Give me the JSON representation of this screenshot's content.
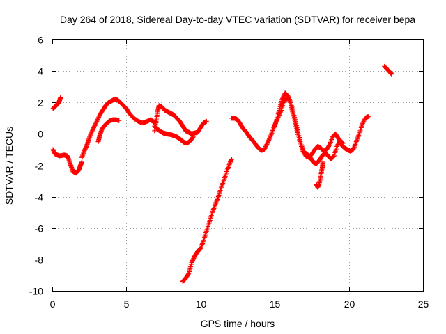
{
  "chart_data": {
    "type": "scatter",
    "title": "Day 264 of 2018, Sidereal Day-to-day VTEC variation (SDTVAR) for receiver bepa",
    "xlabel": "GPS time / hours",
    "ylabel": "SDTVAR / TECUs",
    "xlim": [
      0,
      25
    ],
    "ylim": [
      -10,
      6
    ],
    "xticks": [
      "0",
      "5",
      "10",
      "15",
      "20",
      "25"
    ],
    "yticks": [
      "-10",
      "-8",
      "-6",
      "-4",
      "-2",
      "0",
      "2",
      "4",
      "6"
    ],
    "grid": true,
    "marker": "plus",
    "color": "#ff0000",
    "series": [
      {
        "points": [
          [
            0.05,
            1.6
          ],
          [
            0.15,
            1.7
          ],
          [
            0.25,
            1.8
          ],
          [
            0.35,
            1.9
          ],
          [
            0.45,
            2.0
          ],
          [
            0.55,
            2.3
          ]
        ]
      },
      {
        "points": [
          [
            0.05,
            -1.0
          ],
          [
            0.2,
            -1.3
          ],
          [
            0.5,
            -1.4
          ],
          [
            0.8,
            -1.35
          ],
          [
            1.0,
            -1.4
          ],
          [
            1.1,
            -1.6
          ],
          [
            1.25,
            -2.0
          ],
          [
            1.4,
            -2.4
          ],
          [
            1.6,
            -2.5
          ],
          [
            1.8,
            -2.3
          ],
          [
            1.9,
            -2.0
          ],
          [
            2.0,
            -1.8
          ]
        ]
      },
      {
        "points": [
          [
            2.0,
            -1.5
          ],
          [
            2.15,
            -1.1
          ],
          [
            2.3,
            -0.8
          ],
          [
            2.45,
            -0.4
          ],
          [
            2.6,
            0.0
          ],
          [
            2.8,
            0.4
          ],
          [
            3.0,
            0.8
          ],
          [
            3.2,
            1.2
          ],
          [
            3.4,
            1.5
          ],
          [
            3.6,
            1.8
          ],
          [
            3.8,
            2.0
          ],
          [
            4.0,
            2.1
          ],
          [
            4.2,
            2.2
          ],
          [
            4.4,
            2.15
          ],
          [
            4.6,
            2.0
          ],
          [
            4.8,
            1.8
          ],
          [
            5.0,
            1.6
          ],
          [
            5.2,
            1.3
          ],
          [
            5.5,
            1.0
          ],
          [
            5.8,
            0.8
          ],
          [
            6.1,
            0.7
          ],
          [
            6.4,
            0.8
          ],
          [
            6.6,
            0.9
          ],
          [
            6.8,
            0.8
          ],
          [
            7.0,
            0.7
          ]
        ]
      },
      {
        "points": [
          [
            3.1,
            -0.5
          ],
          [
            3.2,
            -0.1
          ],
          [
            3.35,
            0.3
          ],
          [
            3.5,
            0.5
          ],
          [
            3.7,
            0.7
          ],
          [
            3.9,
            0.85
          ],
          [
            4.1,
            0.9
          ],
          [
            4.3,
            0.9
          ],
          [
            4.5,
            0.85
          ]
        ]
      },
      {
        "points": [
          [
            6.9,
            0.2
          ],
          [
            7.0,
            0.8
          ],
          [
            7.1,
            1.4
          ],
          [
            7.2,
            1.8
          ],
          [
            7.4,
            1.7
          ],
          [
            7.6,
            1.5
          ],
          [
            7.8,
            1.4
          ],
          [
            8.0,
            1.3
          ],
          [
            8.2,
            1.2
          ],
          [
            8.4,
            1.0
          ],
          [
            8.6,
            0.8
          ],
          [
            8.8,
            0.5
          ],
          [
            9.0,
            0.2
          ],
          [
            9.2,
            0.1
          ],
          [
            9.4,
            0.0
          ],
          [
            9.6,
            0.05
          ],
          [
            9.8,
            0.1
          ],
          [
            10.0,
            0.4
          ],
          [
            10.2,
            0.7
          ],
          [
            10.4,
            0.8
          ]
        ]
      },
      {
        "points": [
          [
            6.9,
            0.5
          ],
          [
            7.1,
            0.3
          ],
          [
            7.3,
            0.15
          ],
          [
            7.5,
            0.05
          ],
          [
            7.7,
            0.0
          ],
          [
            8.0,
            -0.05
          ],
          [
            8.3,
            -0.15
          ],
          [
            8.5,
            -0.25
          ],
          [
            8.7,
            -0.4
          ],
          [
            8.9,
            -0.55
          ],
          [
            9.1,
            -0.6
          ],
          [
            9.3,
            -0.45
          ],
          [
            9.5,
            -0.2
          ]
        ]
      },
      {
        "points": [
          [
            8.8,
            -9.4
          ],
          [
            9.0,
            -9.2
          ],
          [
            9.2,
            -8.9
          ],
          [
            9.4,
            -8.2
          ],
          [
            9.6,
            -7.8
          ],
          [
            9.8,
            -7.5
          ],
          [
            10.0,
            -7.3
          ],
          [
            10.2,
            -6.8
          ],
          [
            10.4,
            -6.2
          ],
          [
            10.6,
            -5.6
          ],
          [
            10.8,
            -5.0
          ],
          [
            11.0,
            -4.5
          ],
          [
            11.2,
            -4.0
          ],
          [
            11.4,
            -3.4
          ],
          [
            11.6,
            -2.9
          ],
          [
            11.8,
            -2.3
          ],
          [
            12.0,
            -1.8
          ],
          [
            12.1,
            -1.6
          ]
        ]
      },
      {
        "points": [
          [
            12.1,
            1.0
          ],
          [
            12.3,
            1.0
          ],
          [
            12.5,
            0.9
          ],
          [
            12.7,
            0.6
          ],
          [
            12.9,
            0.3
          ],
          [
            13.1,
            0.1
          ],
          [
            13.3,
            -0.2
          ],
          [
            13.5,
            -0.4
          ],
          [
            13.7,
            -0.65
          ],
          [
            13.9,
            -0.9
          ],
          [
            14.1,
            -1.05
          ],
          [
            14.3,
            -1.0
          ],
          [
            14.5,
            -0.6
          ],
          [
            14.7,
            -0.2
          ],
          [
            14.9,
            0.3
          ],
          [
            15.1,
            0.8
          ],
          [
            15.3,
            1.5
          ],
          [
            15.5,
            2.2
          ],
          [
            15.7,
            2.6
          ],
          [
            15.9,
            2.4
          ],
          [
            16.1,
            1.8
          ],
          [
            16.3,
            1.0
          ],
          [
            16.5,
            0.2
          ],
          [
            16.7,
            -0.5
          ],
          [
            16.9,
            -1.1
          ],
          [
            17.1,
            -1.4
          ],
          [
            17.3,
            -1.5
          ],
          [
            17.5,
            -1.3
          ],
          [
            17.7,
            -1.0
          ],
          [
            17.9,
            -0.8
          ],
          [
            18.1,
            -0.9
          ],
          [
            18.3,
            -1.1
          ],
          [
            18.5,
            -1.0
          ],
          [
            18.7,
            -0.7
          ],
          [
            18.9,
            -0.2
          ],
          [
            19.1,
            0.0
          ],
          [
            19.3,
            -0.3
          ],
          [
            19.5,
            -0.7
          ],
          [
            19.7,
            -0.9
          ],
          [
            19.9,
            -1.0
          ],
          [
            20.1,
            -1.1
          ],
          [
            20.3,
            -1.0
          ],
          [
            20.5,
            -0.5
          ],
          [
            20.7,
            0.0
          ],
          [
            20.9,
            0.6
          ],
          [
            21.1,
            1.0
          ],
          [
            21.3,
            1.1
          ]
        ]
      },
      {
        "points": [
          [
            15.0,
            0.5
          ],
          [
            15.2,
            1.0
          ],
          [
            15.4,
            1.4
          ],
          [
            15.6,
            2.0
          ],
          [
            15.8,
            2.3
          ],
          [
            16.0,
            2.2
          ],
          [
            16.2,
            1.6
          ],
          [
            16.4,
            0.8
          ],
          [
            16.6,
            0.0
          ],
          [
            16.8,
            -0.7
          ],
          [
            17.0,
            -1.2
          ],
          [
            17.2,
            -1.3
          ],
          [
            17.4,
            -1.5
          ],
          [
            17.6,
            -1.8
          ],
          [
            17.8,
            -1.9
          ],
          [
            18.0,
            -1.7
          ],
          [
            18.2,
            -1.4
          ],
          [
            18.4,
            -1.2
          ],
          [
            18.6,
            -1.4
          ],
          [
            18.8,
            -1.6
          ],
          [
            19.0,
            -1.4
          ],
          [
            19.2,
            -0.8
          ],
          [
            19.4,
            -0.4
          ],
          [
            19.6,
            -0.6
          ]
        ]
      },
      {
        "points": [
          [
            17.8,
            -3.2
          ],
          [
            17.9,
            -3.4
          ],
          [
            18.0,
            -3.2
          ],
          [
            18.1,
            -2.7
          ],
          [
            18.2,
            -2.2
          ],
          [
            18.25,
            -1.8
          ]
        ]
      },
      {
        "points": [
          [
            22.4,
            4.3
          ],
          [
            22.6,
            4.1
          ],
          [
            22.8,
            3.9
          ],
          [
            22.9,
            3.8
          ]
        ]
      }
    ]
  }
}
